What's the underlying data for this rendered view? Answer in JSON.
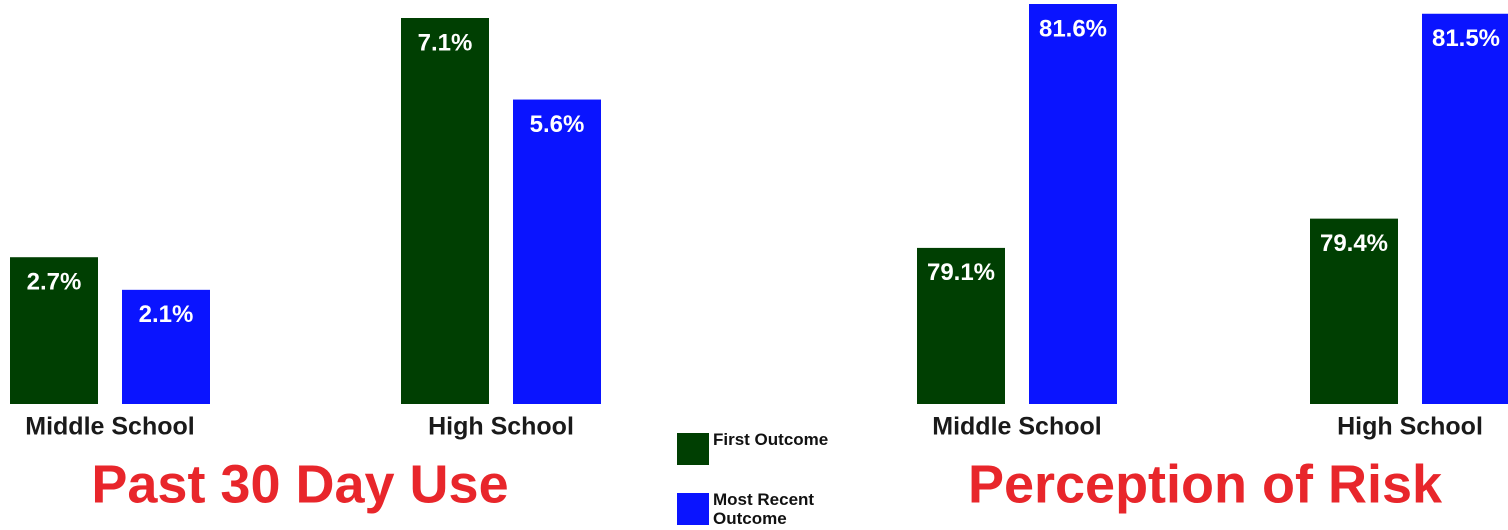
{
  "chart_data": [
    {
      "type": "bar",
      "title": "Past 30 Day Use",
      "categories": [
        "Middle School",
        "High School"
      ],
      "series": [
        {
          "name": "First Outcome",
          "color": "#003f02",
          "values": [
            2.7,
            7.1
          ],
          "value_labels": [
            "2.7%",
            "7.1%"
          ]
        },
        {
          "name": "Most Recent Outcome",
          "color": "#0a14ff",
          "values": [
            2.1,
            5.6
          ],
          "value_labels": [
            "2.1%",
            "5.6%"
          ]
        }
      ],
      "ylim": [
        0,
        7.1
      ]
    },
    {
      "type": "bar",
      "title": "Perception of Risk",
      "categories": [
        "Middle School",
        "High School"
      ],
      "series": [
        {
          "name": "First Outcome",
          "color": "#003f02",
          "values": [
            79.1,
            79.4
          ],
          "value_labels": [
            "79.1%",
            "79.4%"
          ]
        },
        {
          "name": "Most Recent Outcome",
          "color": "#0a14ff",
          "values": [
            81.6,
            81.5
          ],
          "value_labels": [
            "81.6%",
            "81.5%"
          ]
        }
      ],
      "ylim": [
        77.5,
        81.6
      ]
    }
  ]
}
